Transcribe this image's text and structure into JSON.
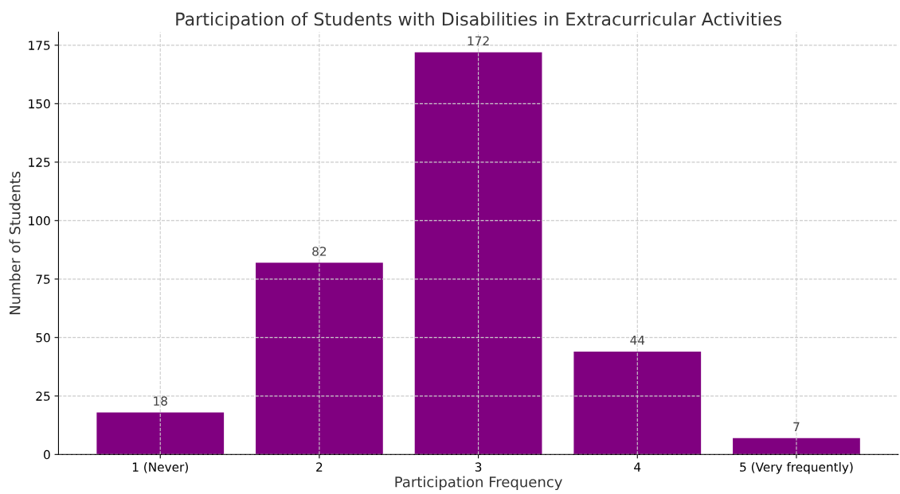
{
  "chart_data": {
    "type": "bar",
    "title": "Participation of Students with Disabilities in Extracurricular Activities",
    "xlabel": "Participation Frequency",
    "ylabel": "Number of Students",
    "categories": [
      "1 (Never)",
      "2",
      "3",
      "4",
      "5 (Very frequently)"
    ],
    "values": [
      18,
      82,
      172,
      44,
      7
    ],
    "color": "#800080",
    "ylim": [
      0,
      180.6
    ],
    "yticks": [
      0,
      25,
      50,
      75,
      100,
      125,
      150,
      175
    ],
    "grid": true,
    "data_labels": true
  }
}
